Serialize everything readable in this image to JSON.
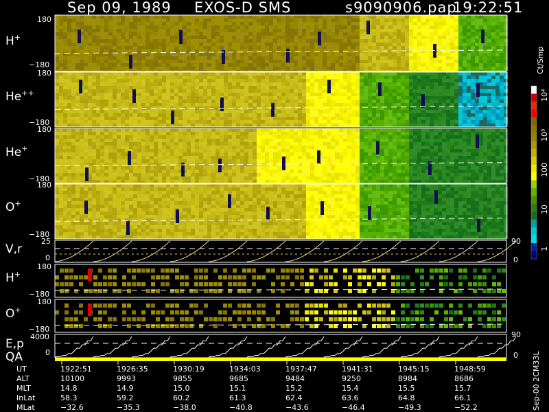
{
  "header": {
    "date": "Sep 09, 1989",
    "instrument": "EXOS-D SMS",
    "file": "s9090906.pap",
    "time": "19:22:51"
  },
  "panels": [
    {
      "label": "H",
      "sup": "+",
      "ymax": "180",
      "ymin": "−180"
    },
    {
      "label": "He",
      "sup": "++",
      "ymax": "180",
      "ymin": "−180"
    },
    {
      "label": "He",
      "sup": "+",
      "ymax": "180",
      "ymin": "−180"
    },
    {
      "label": "O",
      "sup": "+",
      "ymax": "180",
      "ymin": "−180"
    }
  ],
  "vr": {
    "label": "V,r",
    "left_top": "25",
    "left_zero": "0",
    "right_top": "90",
    "right_zero": "0"
  },
  "lower": [
    {
      "label": "H",
      "sup": "+",
      "ymax": "180",
      "ymin": "−180"
    },
    {
      "label": "O",
      "sup": "+",
      "ymax": "180",
      "ymin": "−180"
    }
  ],
  "ep": {
    "label1": "E,p",
    "label2": "QA",
    "left_top": "4000",
    "left_zero": "0",
    "right_top": "90",
    "right_zero": "0"
  },
  "colorbar": {
    "unit": "Ct/Smp",
    "ticks": [
      "10⁴",
      "10³",
      "100",
      "10",
      "1"
    ],
    "colors": [
      "#ffffff",
      "#cc0000",
      "#e03000",
      "#ff0000",
      "#806a00",
      "#8a7600",
      "#968400",
      "#a89810",
      "#c0b010",
      "#d8cc10",
      "#ecec00",
      "#ffff00",
      "#9ad010",
      "#6ab000",
      "#4a9400",
      "#2c8010",
      "#1a6a20",
      "#00a0a0",
      "#00c8d8",
      "#00e0e8",
      "#0020a0",
      "#000080"
    ]
  },
  "footer_label": "Sep-00 2CM33L",
  "table": {
    "rows": [
      {
        "name": "UT",
        "values": [
          "1922:51",
          "1926:35",
          "1930:19",
          "1934:03",
          "1937:47",
          "1941:31",
          "1945:15",
          "1948:59"
        ]
      },
      {
        "name": "ALT",
        "values": [
          "10100",
          "9993",
          "9855",
          "9685",
          "9484",
          "9250",
          "8984",
          "8686"
        ]
      },
      {
        "name": "MLT",
        "values": [
          "14.8",
          "14.9",
          "15.0",
          "15.1",
          "15.2",
          "15.4",
          "15.5",
          "15.7"
        ]
      },
      {
        "name": "InLat",
        "values": [
          "58.3",
          "59.2",
          "60.2",
          "61.3",
          "62.4",
          "63.6",
          "64.8",
          "66.1"
        ]
      },
      {
        "name": "MLat",
        "values": [
          "−32.6",
          "−35.3",
          "−38.0",
          "−40.8",
          "−43.6",
          "−46.4",
          "−49.3",
          "−52.2"
        ]
      }
    ]
  },
  "chart_data": {
    "type": "heatmap",
    "title": "Sep 09, 1989  EXOS-D SMS",
    "x_ticks": [
      "1922:51",
      "1926:35",
      "1930:19",
      "1934:03",
      "1937:47",
      "1941:31",
      "1945:15",
      "1948:59"
    ],
    "panels": [
      {
        "name": "H+",
        "ylim": [
          -180,
          180
        ],
        "levels": [
          "olive",
          "olive",
          "olive",
          "olive",
          "olive",
          "olive",
          "yellow-olive",
          "yellow",
          "green"
        ]
      },
      {
        "name": "He++",
        "ylim": [
          -180,
          180
        ],
        "levels": [
          "yellow-olive",
          "yellow-olive",
          "yellow-olive",
          "yellow-olive",
          "yellow-olive",
          "yellow",
          "green",
          "dark-green",
          "cyan"
        ]
      },
      {
        "name": "He+",
        "ylim": [
          -180,
          180
        ],
        "levels": [
          "olive-yellow",
          "olive-yellow",
          "olive-yellow",
          "olive-yellow",
          "yellow",
          "yellow",
          "green",
          "dark-green",
          "dark-green"
        ]
      },
      {
        "name": "O+",
        "ylim": [
          -180,
          180
        ],
        "levels": [
          "olive-yellow",
          "olive-yellow",
          "olive-yellow",
          "olive-yellow",
          "yellow",
          "yellow",
          "green",
          "dark-green",
          "dark-green"
        ]
      }
    ],
    "colorbar": {
      "unit": "Ct/Smp",
      "scale": "log",
      "ticks": [
        1,
        10,
        100,
        1000,
        10000
      ]
    }
  }
}
